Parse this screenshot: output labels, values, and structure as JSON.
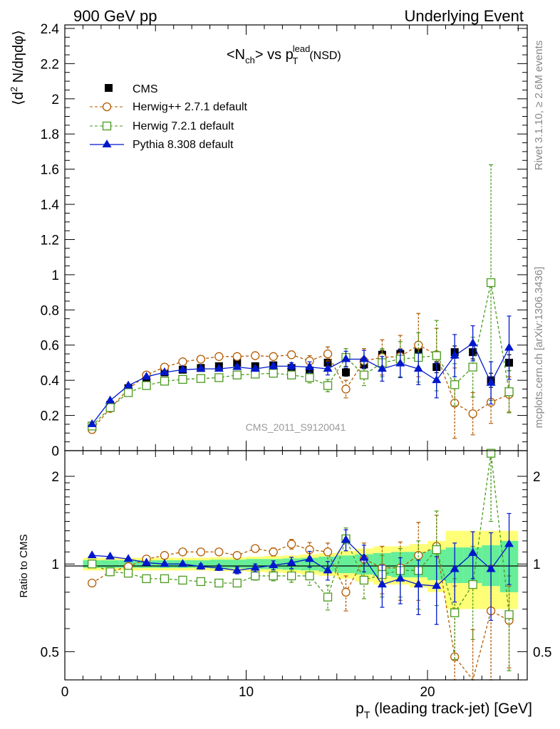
{
  "header": {
    "left": "900 GeV pp",
    "right": "Underlying Event"
  },
  "side_labels": {
    "rivet": "Rivet 3.1.10, ≥ 2.6M events",
    "mcplots": "mcplots.cern.ch [arXiv:1306.3436]"
  },
  "watermark": "CMS_2011_S9120041",
  "chart_data": [
    {
      "type": "scatter",
      "panel": "main",
      "title_parts": {
        "n": "<N",
        "ch": "ch",
        "vs": "> vs p",
        "lead": "lead",
        "T": "T",
        "nsd": "(NSD)"
      },
      "ylabel_parts": {
        "pre": "⟨d",
        "sup": "2",
        "post": " N/dηdφ⟩"
      },
      "xlabel_parts": {
        "p": "p",
        "T": "T",
        "rest": " (leading track-jet) [GeV]"
      },
      "xlim": [
        0,
        25.5
      ],
      "ylim": [
        0,
        2.42
      ],
      "yticks": [
        0,
        0.2,
        0.4,
        0.6,
        0.8,
        1,
        1.2,
        1.4,
        1.6,
        1.8,
        2,
        2.2,
        2.4
      ],
      "ytick_labels": [
        "0",
        "0.2",
        "0.4",
        "0.6",
        "0.8",
        "1",
        "1.2",
        "1.4",
        "1.6",
        "1.8",
        "2",
        "2.2",
        "2.4"
      ],
      "xticks": [
        0,
        10,
        20
      ],
      "xtick_labels": [
        "0",
        "10",
        "20"
      ],
      "x": [
        1.5,
        2.5,
        3.5,
        4.5,
        5.5,
        6.5,
        7.5,
        8.5,
        9.5,
        10.5,
        11.5,
        12.5,
        13.5,
        14.5,
        15.5,
        16.5,
        17.5,
        18.5,
        19.5,
        20.5,
        21.5,
        22.5,
        23.5,
        24.5
      ],
      "legend_position": "top-left",
      "series": [
        {
          "name": "CMS",
          "color": "#000000",
          "marker": "filled-square",
          "line": "none",
          "values": [
            0.14,
            0.26,
            0.355,
            0.415,
            0.445,
            0.46,
            0.47,
            0.48,
            0.5,
            0.48,
            0.485,
            0.47,
            0.455,
            0.5,
            0.445,
            0.49,
            0.545,
            0.55,
            0.56,
            0.475,
            0.56,
            0.56,
            0.4,
            0.5
          ],
          "errors": [
            0.005,
            0.005,
            0.006,
            0.007,
            0.008,
            0.008,
            0.009,
            0.01,
            0.01,
            0.012,
            0.013,
            0.015,
            0.017,
            0.02,
            0.022,
            0.024,
            0.026,
            0.028,
            0.03,
            0.032,
            0.035,
            0.038,
            0.04,
            0.045
          ]
        },
        {
          "name": "Herwig++ 2.7.1 default",
          "color": "#b35a00",
          "marker": "open-circle",
          "line": "dashed",
          "values": [
            0.12,
            0.24,
            0.35,
            0.43,
            0.475,
            0.505,
            0.52,
            0.535,
            0.535,
            0.54,
            0.535,
            0.545,
            0.51,
            0.55,
            0.35,
            0.51,
            0.53,
            0.535,
            0.6,
            0.545,
            0.27,
            0.21,
            0.275,
            0.32
          ],
          "errors": [
            0.005,
            0.005,
            0.006,
            0.007,
            0.007,
            0.008,
            0.01,
            0.01,
            0.012,
            0.014,
            0.016,
            0.02,
            0.03,
            0.04,
            0.05,
            0.07,
            0.1,
            0.12,
            0.18,
            0.15,
            0.2,
            0.12,
            0.12,
            0.1
          ]
        },
        {
          "name": "Herwig 7.2.1 default",
          "color": "#4a9a1c",
          "marker": "open-square",
          "line": "dashed",
          "values": [
            0.14,
            0.245,
            0.33,
            0.37,
            0.395,
            0.405,
            0.41,
            0.415,
            0.43,
            0.435,
            0.44,
            0.43,
            0.415,
            0.37,
            0.53,
            0.43,
            0.5,
            0.52,
            0.53,
            0.54,
            0.375,
            0.475,
            0.955,
            0.335
          ],
          "errors": [
            0.005,
            0.005,
            0.006,
            0.007,
            0.007,
            0.008,
            0.01,
            0.01,
            0.012,
            0.014,
            0.016,
            0.02,
            0.03,
            0.035,
            0.05,
            0.06,
            0.08,
            0.1,
            0.14,
            0.2,
            0.12,
            0.17,
            0.67,
            0.12
          ]
        },
        {
          "name": "Pythia 8.308 default",
          "color": "#0018cc",
          "marker": "filled-triangle",
          "line": "solid",
          "values": [
            0.15,
            0.285,
            0.37,
            0.42,
            0.445,
            0.46,
            0.465,
            0.465,
            0.475,
            0.465,
            0.48,
            0.48,
            0.475,
            0.465,
            0.52,
            0.52,
            0.465,
            0.495,
            0.465,
            0.4,
            0.54,
            0.61,
            0.385,
            0.585
          ],
          "errors": [
            0.005,
            0.005,
            0.006,
            0.007,
            0.007,
            0.008,
            0.01,
            0.01,
            0.012,
            0.014,
            0.016,
            0.02,
            0.03,
            0.035,
            0.045,
            0.05,
            0.07,
            0.08,
            0.09,
            0.1,
            0.12,
            0.1,
            0.12,
            0.18
          ]
        }
      ]
    },
    {
      "type": "scatter",
      "panel": "ratio",
      "ylabel": "Ratio to CMS",
      "xlim": [
        0,
        25.5
      ],
      "ylim": [
        0.4,
        2.45
      ],
      "yscale": "log",
      "yticks": [
        0.5,
        1,
        2
      ],
      "ytick_labels": [
        "0.5",
        "1",
        "2"
      ],
      "reference_line": 1,
      "x": [
        1.5,
        2.5,
        3.5,
        4.5,
        5.5,
        6.5,
        7.5,
        8.5,
        9.5,
        10.5,
        11.5,
        12.5,
        13.5,
        14.5,
        15.5,
        16.5,
        17.5,
        18.5,
        19.5,
        20.5,
        21.5,
        22.5,
        23.5,
        24.5
      ],
      "bands": {
        "stat_color": "#66ee99",
        "total_color": "#ffff77",
        "stat": [
          0.03,
          0.03,
          0.03,
          0.03,
          0.03,
          0.03,
          0.03,
          0.035,
          0.035,
          0.04,
          0.04,
          0.045,
          0.05,
          0.06,
          0.07,
          0.08,
          0.09,
          0.1,
          0.1,
          0.12,
          0.14,
          0.14,
          0.16,
          0.2
        ],
        "total": [
          0.05,
          0.05,
          0.05,
          0.05,
          0.05,
          0.05,
          0.05,
          0.055,
          0.055,
          0.06,
          0.065,
          0.07,
          0.08,
          0.09,
          0.11,
          0.13,
          0.15,
          0.15,
          0.17,
          0.2,
          0.3,
          0.3,
          0.3,
          0.3
        ]
      },
      "series": [
        {
          "name": "Herwig++ 2.7.1 default",
          "color": "#b35a00",
          "marker": "open-circle",
          "line": "dashed",
          "values": [
            0.86,
            0.94,
            0.98,
            1.04,
            1.07,
            1.1,
            1.1,
            1.1,
            1.07,
            1.13,
            1.1,
            1.17,
            1.12,
            1.1,
            0.8,
            1.04,
            0.97,
            0.97,
            1.07,
            1.15,
            0.48,
            0.375,
            0.69,
            0.64
          ],
          "errors": [
            0.01,
            0.01,
            0.01,
            0.01,
            0.01,
            0.01,
            0.02,
            0.02,
            0.025,
            0.03,
            0.035,
            0.045,
            0.065,
            0.08,
            0.11,
            0.14,
            0.18,
            0.22,
            0.32,
            0.32,
            0.36,
            0.22,
            0.3,
            0.2
          ]
        },
        {
          "name": "Herwig 7.2.1 default",
          "color": "#4a9a1c",
          "marker": "open-square",
          "line": "dashed",
          "values": [
            1.0,
            0.94,
            0.93,
            0.89,
            0.89,
            0.88,
            0.87,
            0.86,
            0.86,
            0.91,
            0.91,
            0.91,
            0.91,
            0.77,
            1.22,
            0.88,
            0.92,
            0.95,
            0.95,
            1.12,
            0.68,
            0.85,
            2.4,
            0.67
          ],
          "errors": [
            0.01,
            0.01,
            0.01,
            0.01,
            0.01,
            0.01,
            0.02,
            0.02,
            0.025,
            0.03,
            0.035,
            0.045,
            0.065,
            0.075,
            0.11,
            0.12,
            0.15,
            0.18,
            0.25,
            0.4,
            0.21,
            0.3,
            1.0,
            0.24
          ]
        },
        {
          "name": "Pythia 8.308 default",
          "color": "#0018cc",
          "marker": "filled-triangle",
          "line": "solid",
          "values": [
            1.07,
            1.06,
            1.04,
            1.01,
            1.0,
            1.0,
            0.98,
            0.97,
            0.95,
            0.97,
            0.99,
            1.01,
            1.04,
            0.95,
            1.21,
            1.05,
            0.85,
            0.89,
            0.85,
            0.84,
            0.96,
            1.09,
            0.96,
            1.17
          ],
          "errors": [
            0.01,
            0.01,
            0.01,
            0.01,
            0.01,
            0.01,
            0.02,
            0.02,
            0.025,
            0.03,
            0.035,
            0.045,
            0.065,
            0.07,
            0.1,
            0.11,
            0.14,
            0.16,
            0.18,
            0.22,
            0.22,
            0.2,
            0.32,
            0.32
          ]
        }
      ]
    }
  ]
}
